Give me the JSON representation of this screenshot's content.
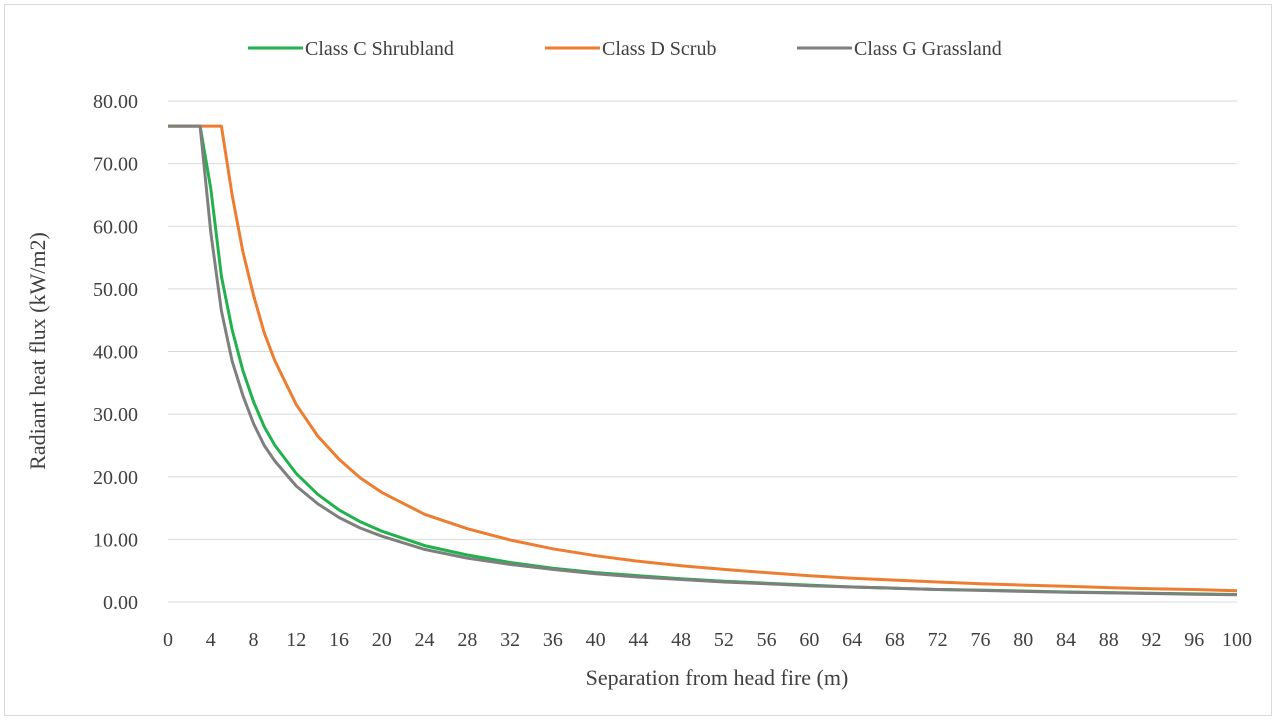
{
  "chart_data": {
    "type": "line",
    "title": "",
    "xlabel": "Separation from head fire (m)",
    "ylabel": "Radiant heat flux (kW/m2)",
    "xlim": [
      0,
      100
    ],
    "ylim": [
      0,
      80
    ],
    "x_ticks": [
      "0",
      "4",
      "8",
      "12",
      "16",
      "20",
      "24",
      "28",
      "32",
      "36",
      "40",
      "44",
      "48",
      "52",
      "56",
      "60",
      "64",
      "68",
      "72",
      "76",
      "80",
      "84",
      "88",
      "92",
      "96",
      "100"
    ],
    "y_ticks": [
      "0.00",
      "10.00",
      "20.00",
      "30.00",
      "40.00",
      "50.00",
      "60.00",
      "70.00",
      "80.00"
    ],
    "grid": "horizontal",
    "legend_position": "top",
    "series": [
      {
        "name": "Class C Shrubland",
        "color": "#22b14c",
        "x": [
          0,
          3,
          4,
          5,
          6,
          7,
          8,
          9,
          10,
          12,
          14,
          16,
          18,
          20,
          24,
          28,
          32,
          36,
          40,
          44,
          48,
          52,
          56,
          60,
          64,
          68,
          72,
          76,
          80,
          84,
          88,
          92,
          96,
          100
        ],
        "y": [
          76.0,
          76.0,
          66.0,
          52.0,
          43.5,
          37.0,
          32.0,
          28.0,
          25.0,
          20.5,
          17.2,
          14.7,
          12.8,
          11.3,
          9.0,
          7.5,
          6.3,
          5.4,
          4.7,
          4.2,
          3.7,
          3.3,
          3.0,
          2.7,
          2.4,
          2.2,
          2.0,
          1.9,
          1.75,
          1.6,
          1.5,
          1.4,
          1.3,
          1.2
        ]
      },
      {
        "name": "Class D Scrub",
        "color": "#ed7d31",
        "x": [
          0,
          5,
          6,
          7,
          8,
          9,
          10,
          12,
          14,
          16,
          18,
          20,
          24,
          28,
          32,
          36,
          40,
          44,
          48,
          52,
          56,
          60,
          64,
          68,
          72,
          76,
          80,
          84,
          88,
          92,
          96,
          100
        ],
        "y": [
          76.0,
          76.0,
          65.0,
          56.0,
          49.0,
          43.0,
          38.5,
          31.5,
          26.5,
          22.8,
          19.8,
          17.5,
          14.0,
          11.7,
          9.9,
          8.5,
          7.4,
          6.5,
          5.8,
          5.2,
          4.7,
          4.2,
          3.8,
          3.5,
          3.2,
          2.9,
          2.7,
          2.5,
          2.3,
          2.1,
          2.0,
          1.8
        ]
      },
      {
        "name": "Class G Grassland",
        "color": "#7f7f7f",
        "x": [
          0,
          3,
          4,
          5,
          6,
          7,
          8,
          9,
          10,
          12,
          14,
          16,
          18,
          20,
          24,
          28,
          32,
          36,
          40,
          44,
          48,
          52,
          56,
          60,
          64,
          68,
          72,
          76,
          80,
          84,
          88,
          92,
          96,
          100
        ],
        "y": [
          76.0,
          76.0,
          59.0,
          46.5,
          38.5,
          33.0,
          28.5,
          25.0,
          22.5,
          18.5,
          15.7,
          13.5,
          11.8,
          10.5,
          8.4,
          7.0,
          6.0,
          5.2,
          4.5,
          4.0,
          3.6,
          3.2,
          2.9,
          2.6,
          2.4,
          2.2,
          2.0,
          1.85,
          1.7,
          1.55,
          1.45,
          1.35,
          1.25,
          1.15
        ]
      }
    ]
  }
}
